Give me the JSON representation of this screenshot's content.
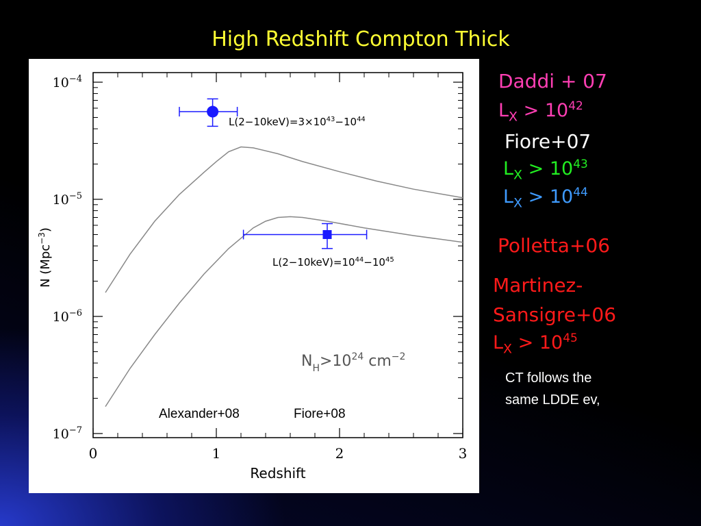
{
  "slide": {
    "title": "High Redshift Compton Thick"
  },
  "legend_text": {
    "daddi": "Daddi + 07",
    "daddi_lx_prefix": "L",
    "daddi_lx_sub": "X",
    "daddi_lx_rel": ">  10",
    "daddi_lx_exp": "42",
    "fiore07": "Fiore+07",
    "fiore_lx1_prefix": "L",
    "fiore_lx1_sub": "X",
    "fiore_lx1_rel": ">  10",
    "fiore_lx1_exp": "43",
    "fiore_lx2_prefix": "L",
    "fiore_lx2_sub": "X",
    "fiore_lx2_rel": ">  10",
    "fiore_lx2_exp": "44",
    "polletta": "Polletta+06",
    "martinez1": "Martinez-",
    "martinez2": "Sansigre+06",
    "martinez_lx_prefix": "L",
    "martinez_lx_sub": "X",
    "martinez_lx_rel": ">  10",
    "martinez_lx_exp": "45",
    "note_line1": "CT follows the",
    "note_line2": "same LDDE ev,"
  },
  "colors": {
    "title": "#ffff33",
    "daddi": "#ff3fb4",
    "fiore_lx43": "#22ee22",
    "fiore_lx44": "#3f9bff",
    "polletta": "#ff1a1a",
    "martinez": "#ff1a1a",
    "data_points": "#1a1aff",
    "model_curves": "#888888"
  },
  "chart_data": {
    "type": "scatter",
    "xlabel": "Redshift",
    "ylabel": "N (Mpc",
    "ylabel_exp": "−3",
    "xlim": [
      0,
      3
    ],
    "ylim": [
      1e-07,
      0.0001
    ],
    "y_scale": "log",
    "x_ticks": [
      "0",
      "1",
      "2",
      "3"
    ],
    "y_ticks": [
      {
        "value": 0.0001,
        "base": "10",
        "exp": "−4"
      },
      {
        "value": 1e-05,
        "base": "10",
        "exp": "−5"
      },
      {
        "value": 1e-06,
        "base": "10",
        "exp": "−6"
      },
      {
        "value": 1e-07,
        "base": "10",
        "exp": "−7"
      }
    ],
    "annotations": {
      "label1_text": "L(2−10keV)=3×10",
      "label1_exp1": "43",
      "label1_mid": "−10",
      "label1_exp2": "44",
      "label2_text": "L(2−10keV)=10",
      "label2_exp1": "44",
      "label2_mid": "−10",
      "label2_exp2": "45",
      "nh_text": "N",
      "nh_sub": "H",
      "nh_rel": ">10",
      "nh_exp": "24",
      "nh_unit": "  cm",
      "nh_unit_exp": "−2",
      "ref1": "Alexander+08",
      "ref2": "Fiore+08"
    },
    "series": [
      {
        "name": "L(2−10keV)=3×10^43−10^44",
        "marker": "circle",
        "points": [
          {
            "x": 0.97,
            "y": 5.6e-05,
            "xerr": [
              0.27,
              0.2
            ],
            "yerr": [
              1.4e-05,
              1.6e-05
            ]
          }
        ]
      },
      {
        "name": "L(2−10keV)=10^44−10^45",
        "marker": "square",
        "points": [
          {
            "x": 1.9,
            "y": 5e-06,
            "xerr": [
              0.68,
              0.32
            ],
            "yerr": [
              1.2e-06,
              1.2e-06
            ]
          }
        ]
      }
    ],
    "model_curves": [
      {
        "x": [
          0.1,
          0.3,
          0.5,
          0.7,
          0.9,
          1.0,
          1.1,
          1.2,
          1.3,
          1.5,
          1.7,
          2.0,
          2.3,
          2.6,
          3.0
        ],
        "y": [
          1.6e-06,
          3.4e-06,
          6.5e-06,
          1.1e-05,
          1.7e-05,
          2.1e-05,
          2.55e-05,
          2.8e-05,
          2.75e-05,
          2.45e-05,
          2.1e-05,
          1.72e-05,
          1.43e-05,
          1.22e-05,
          1.03e-05
        ]
      },
      {
        "x": [
          0.1,
          0.3,
          0.5,
          0.7,
          0.9,
          1.1,
          1.3,
          1.4,
          1.5,
          1.6,
          1.7,
          1.9,
          2.2,
          2.6,
          3.0
        ],
        "y": [
          1.7e-07,
          3.6e-07,
          7e-07,
          1.3e-06,
          2.3e-06,
          3.8e-06,
          5.7e-06,
          6.5e-06,
          7e-06,
          7.1e-06,
          7e-06,
          6.5e-06,
          5.7e-06,
          4.9e-06,
          4.3e-06
        ]
      }
    ]
  }
}
